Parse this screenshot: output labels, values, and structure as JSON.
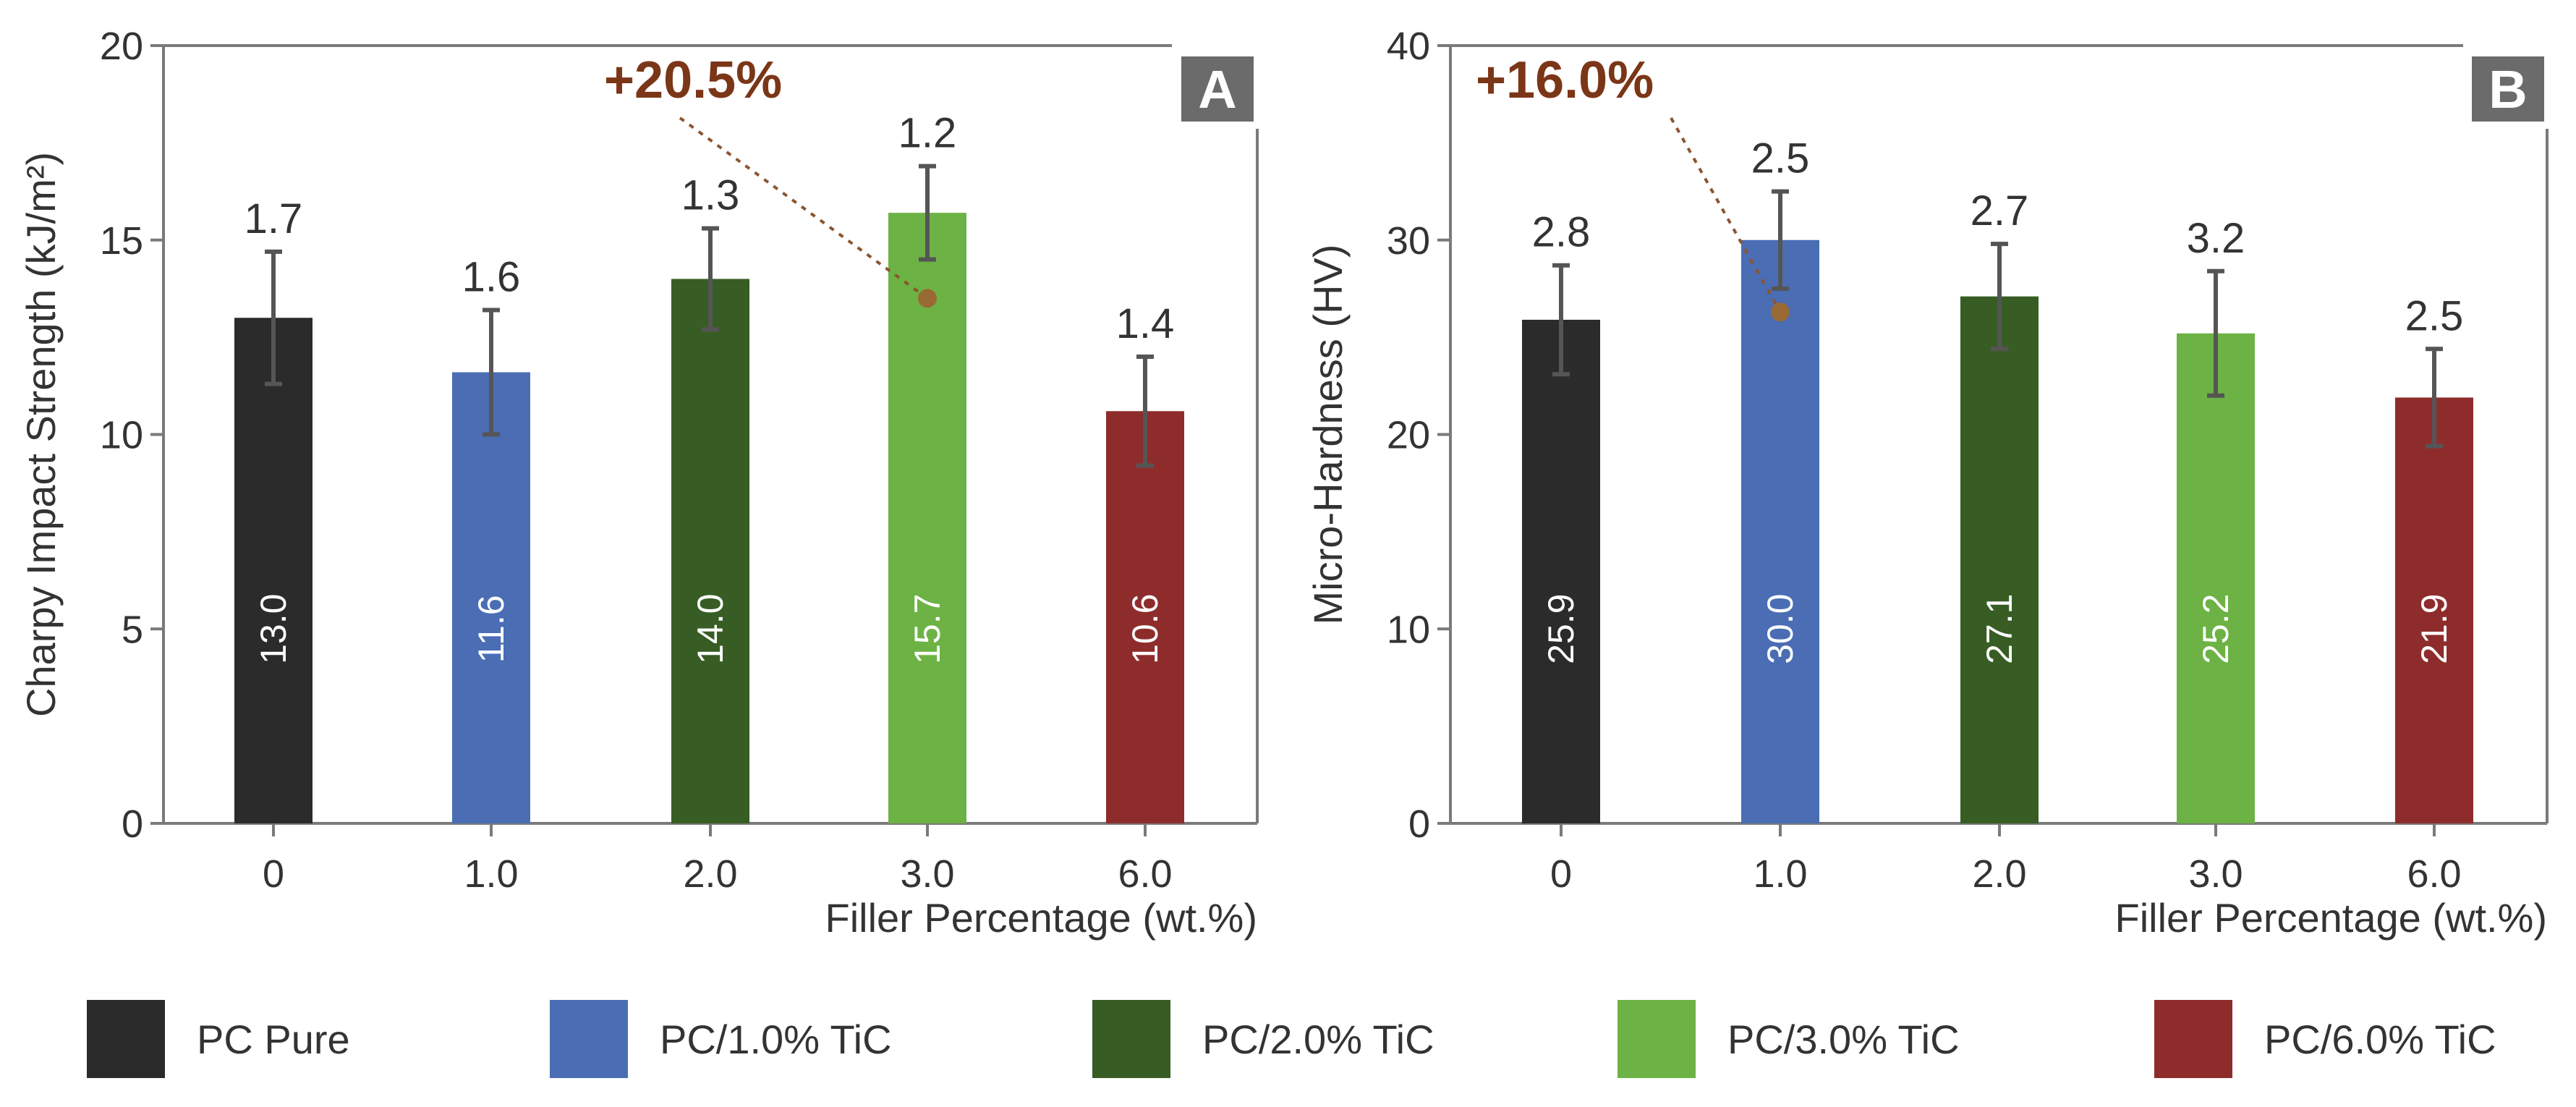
{
  "chart_data": [
    {
      "type": "bar",
      "panel_label": "A",
      "categories": [
        "0",
        "1.0",
        "2.0",
        "3.0",
        "6.0"
      ],
      "values": [
        13.0,
        11.6,
        14.0,
        15.7,
        10.6
      ],
      "value_labels": [
        "13.0",
        "11.6",
        "14.0",
        "15.7",
        "10.6"
      ],
      "errors": [
        1.7,
        1.6,
        1.3,
        1.2,
        1.4
      ],
      "error_labels": [
        "1.7",
        "1.6",
        "1.3",
        "1.2",
        "1.4"
      ],
      "colors": [
        "#2b2b2b",
        "#4a6db4",
        "#375d24",
        "#6db244",
        "#8e2c2c"
      ],
      "ylabel": "Charpy Impact Strength (kJ/m²)",
      "xlabel": "Filler Percentage (wt.%)",
      "ylim": [
        0,
        20
      ],
      "yticks": [
        0,
        5,
        10,
        15,
        20
      ],
      "ytick_labels": [
        "0",
        "5",
        "10",
        "15",
        "20"
      ],
      "annotation": {
        "text": "+20.5%",
        "target_index": 3,
        "marker_value": 13.5
      }
    },
    {
      "type": "bar",
      "panel_label": "B",
      "categories": [
        "0",
        "1.0",
        "2.0",
        "3.0",
        "6.0"
      ],
      "values": [
        25.9,
        30.0,
        27.1,
        25.2,
        21.9
      ],
      "value_labels": [
        "25.9",
        "30.0",
        "27.1",
        "25.2",
        "21.9"
      ],
      "errors": [
        2.8,
        2.5,
        2.7,
        3.2,
        2.5
      ],
      "error_labels": [
        "2.8",
        "2.5",
        "2.7",
        "3.2",
        "2.5"
      ],
      "colors": [
        "#2b2b2b",
        "#4a6db4",
        "#375d24",
        "#6db244",
        "#8e2c2c"
      ],
      "ylabel": "Micro-Hardness (HV)",
      "xlabel": "Filler Percentage (wt.%)",
      "ylim": [
        0,
        40
      ],
      "yticks": [
        0,
        10,
        20,
        30,
        40
      ],
      "ytick_labels": [
        "0",
        "10",
        "20",
        "30",
        "40"
      ],
      "annotation": {
        "text": "+16.0%",
        "target_index": 1,
        "marker_value": 26.3
      }
    }
  ],
  "legend": [
    {
      "label": "PC Pure",
      "color": "#2b2b2b"
    },
    {
      "label": "PC/1.0% TiC",
      "color": "#4a6db4"
    },
    {
      "label": "PC/2.0% TiC",
      "color": "#375d24"
    },
    {
      "label": "PC/3.0% TiC",
      "color": "#6db244"
    },
    {
      "label": "PC/6.0% TiC",
      "color": "#8e2c2c"
    }
  ]
}
